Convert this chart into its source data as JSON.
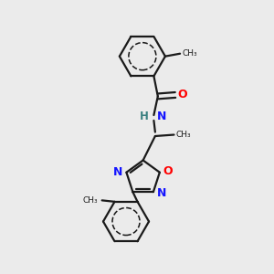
{
  "bg_color": "#ebebeb",
  "bond_color": "#1a1a1a",
  "N_color": "#1414ff",
  "O_color": "#ff0000",
  "H_color": "#3a8080",
  "line_width": 1.6,
  "figsize": [
    3.0,
    3.0
  ],
  "dpi": 100,
  "xlim": [
    0,
    10
  ],
  "ylim": [
    0,
    10
  ]
}
